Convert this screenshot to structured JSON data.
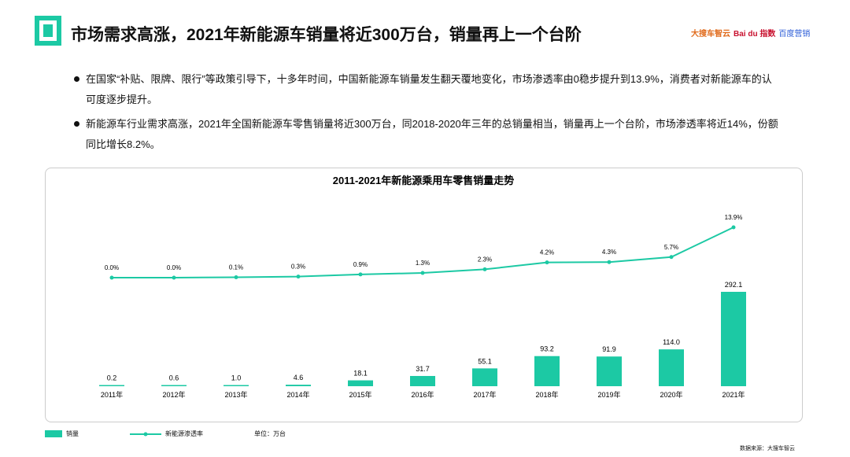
{
  "header": {
    "title": "市场需求高涨，2021年新能源车销量将近300万台，销量再上一个台阶",
    "brand": [
      "大搜车智云",
      "Bai du 指数",
      "百度营销"
    ]
  },
  "bullets": [
    "在国家“补贴、限牌、限行”等政策引导下，十多年时间，中国新能源车销量发生翻天覆地变化，市场渗透率由0稳步提升到13.9%，消费者对新能源车的认可度逐步提升。",
    "新能源车行业需求高涨，2021年全国新能源车零售销量将近300万台，同2018-2020年三年的总销量相当，销量再上一个台阶，市场渗透率将近14%，份额同比增长8.2%。"
  ],
  "chart_data": {
    "type": "bar+line",
    "title": "2011-2021年新能源乘用车零售销量走势",
    "categories": [
      "2011年",
      "2012年",
      "2013年",
      "2014年",
      "2015年",
      "2016年",
      "2017年",
      "2018年",
      "2019年",
      "2020年",
      "2021年"
    ],
    "series": [
      {
        "name": "销量",
        "type": "bar",
        "values": [
          0.2,
          0.6,
          1.0,
          4.6,
          18.1,
          31.7,
          55.1,
          93.2,
          91.9,
          114.0,
          292.1
        ],
        "labels": [
          "0.2",
          "0.6",
          "1.0",
          "4.6",
          "18.1",
          "31.7",
          "55.1",
          "93.2",
          "91.9",
          "114.0",
          "292.1"
        ]
      },
      {
        "name": "新能源渗透率",
        "type": "line",
        "values": [
          0.0,
          0.0,
          0.1,
          0.3,
          0.9,
          1.3,
          2.3,
          4.2,
          4.3,
          5.7,
          13.9
        ],
        "labels": [
          "0.0%",
          "0.0%",
          "0.1%",
          "0.3%",
          "0.9%",
          "1.3%",
          "2.3%",
          "4.2%",
          "4.3%",
          "5.7%",
          "13.9%"
        ]
      }
    ],
    "color": "#1cc9a4",
    "unit": "单位：万台",
    "grid": false,
    "legend_position": "bottom-left"
  },
  "footer": {
    "source": "数据来源：大搜车智云"
  }
}
